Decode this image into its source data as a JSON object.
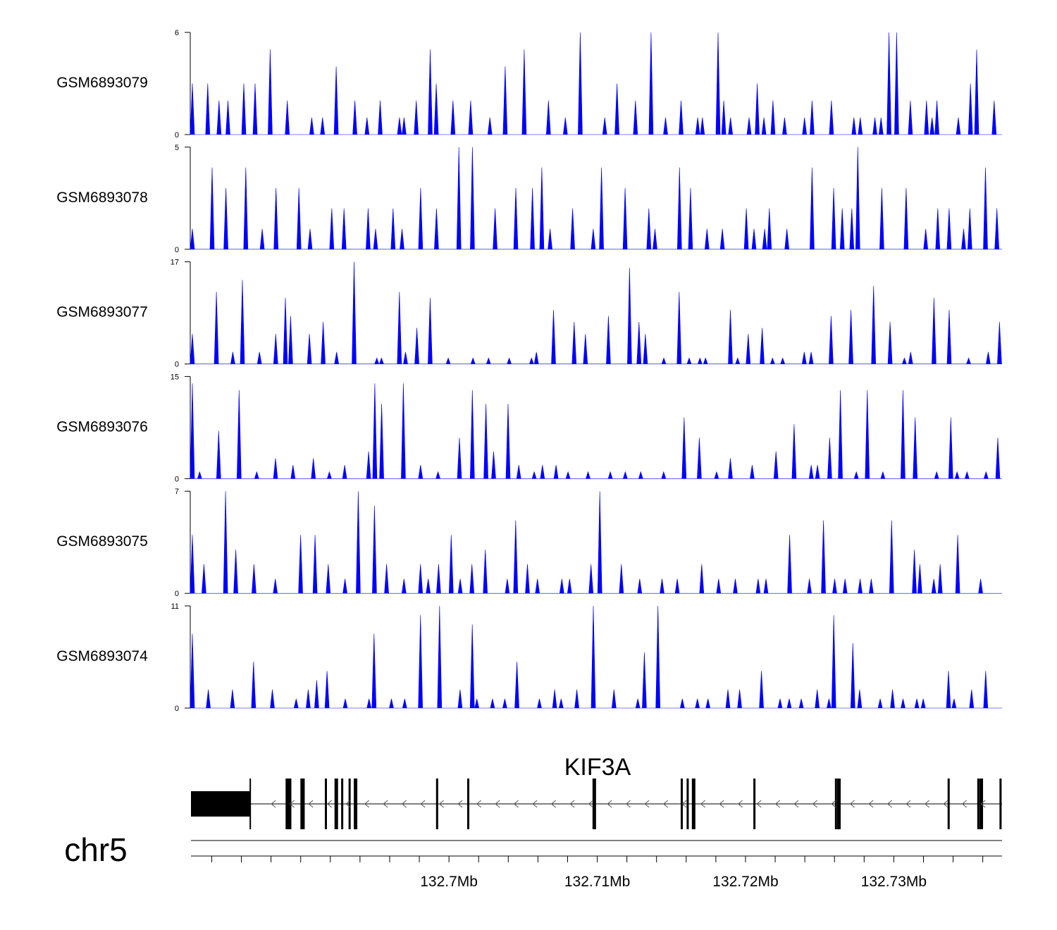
{
  "chart_data": {
    "type": "area",
    "chromosome": "chr5",
    "x_range_bp": [
      132682600,
      132737300
    ],
    "colors": {
      "coverage": "#0000ff",
      "gene": "#000000"
    },
    "tracks": [
      {
        "name": "GSM6893079",
        "ymax": 6,
        "ymax_label": "6",
        "ymin_label": "0"
      },
      {
        "name": "GSM6893078",
        "ymax": 5,
        "ymax_label": "5",
        "ymin_label": "0"
      },
      {
        "name": "GSM6893077",
        "ymax": 17,
        "ymax_label": "17",
        "ymin_label": "0"
      },
      {
        "name": "GSM6893076",
        "ymax": 15,
        "ymax_label": "15",
        "ymin_label": "0"
      },
      {
        "name": "GSM6893075",
        "ymax": 7,
        "ymax_label": "7",
        "ymin_label": "0"
      },
      {
        "name": "GSM6893074",
        "ymax": 11,
        "ymax_label": "11",
        "ymin_label": "0"
      }
    ],
    "gene": {
      "name": "KIF3A",
      "strand": "-",
      "utr_block_bp": [
        132682600,
        132686600
      ],
      "exons_bp": [
        132689100,
        132689200,
        132689300,
        132690100,
        132690200,
        132691700,
        132692400,
        132692800,
        132693300,
        132693700,
        132699200,
        132701300,
        132709800,
        132715700,
        132716100,
        132716500,
        132720600,
        132726100,
        132726300,
        132733700,
        132735700,
        132735900,
        132737200
      ]
    },
    "axis": {
      "tick_labels": [
        "132.7Mb",
        "132.71Mb",
        "132.72Mb",
        "132.73Mb"
      ],
      "tick_values_bp": [
        132700000,
        132710000,
        132720000,
        132730000
      ],
      "minor_tick_step_bp": 2000
    }
  }
}
